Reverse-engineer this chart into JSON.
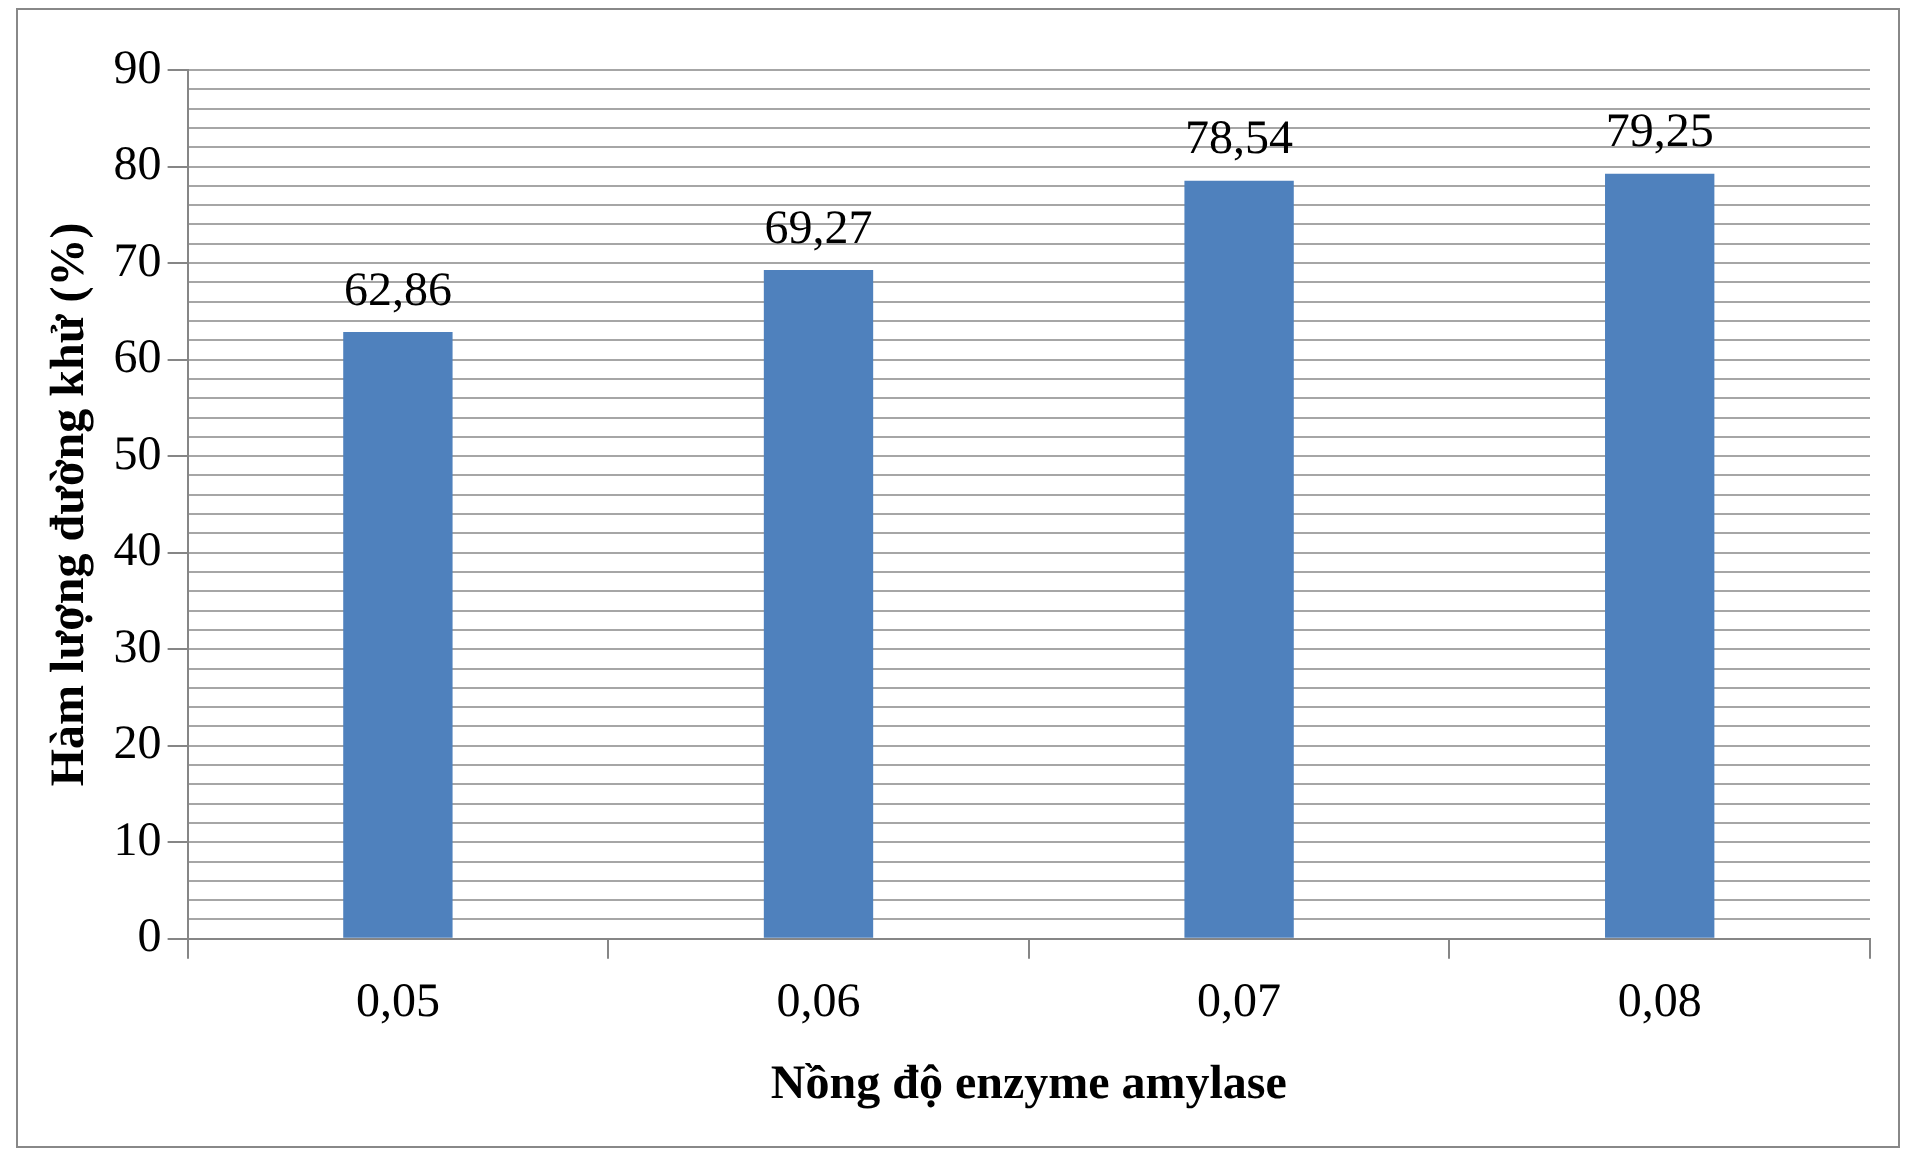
{
  "chart_data": {
    "type": "bar",
    "xlabel": "Nồng độ enzyme amylase",
    "ylabel": "Hàm lượng đường khử (%)",
    "categories": [
      "0,05",
      "0,06",
      "0,07",
      "0,08"
    ],
    "values": [
      62.86,
      69.27,
      78.54,
      79.25
    ],
    "color": "#4f81bd",
    "value_labels": [
      "62,86",
      "69,27",
      "78,54",
      "79,25"
    ],
    "ylim": [
      0,
      90
    ],
    "yticks": [
      0,
      {
        "value": 2,
        "label": null
      },
      {
        "value": 4,
        "label": null
      },
      {
        "value": 6,
        "label": null
      },
      {
        "value": 8,
        "label": null
      },
      10,
      {
        "value": 12,
        "label": null
      },
      {
        "value": 14,
        "label": null
      },
      {
        "value": 16,
        "label": null
      },
      {
        "value": 18,
        "label": null
      },
      20,
      {
        "value": 22,
        "label": null
      },
      {
        "value": 24,
        "label": null
      },
      {
        "value": 26,
        "label": null
      },
      {
        "value": 28,
        "label": null
      },
      30,
      {
        "value": 32,
        "label": null
      },
      {
        "value": 34,
        "label": null
      },
      {
        "value": 36,
        "label": null
      },
      {
        "value": 38,
        "label": null
      },
      40,
      {
        "value": 42,
        "label": null
      },
      {
        "value": 44,
        "label": null
      },
      {
        "value": 46,
        "label": null
      },
      {
        "value": 48,
        "label": null
      },
      50,
      {
        "value": 52,
        "label": null
      },
      {
        "value": 54,
        "label": null
      },
      {
        "value": 56,
        "label": null
      },
      {
        "value": 58,
        "label": null
      },
      60,
      {
        "value": 62,
        "label": null
      },
      {
        "value": 64,
        "label": null
      },
      {
        "value": 66,
        "label": null
      },
      {
        "value": 68,
        "label": null
      },
      70,
      {
        "value": 72,
        "label": null
      },
      {
        "value": 74,
        "label": null
      },
      {
        "value": 76,
        "label": null
      },
      {
        "value": 78,
        "label": null
      },
      80,
      {
        "value": 82,
        "label": null
      },
      {
        "value": 84,
        "label": null
      },
      {
        "value": 86,
        "label": null
      },
      {
        "value": 88,
        "label": null
      },
      90
    ],
    "grid": "y",
    "legend": false
  }
}
